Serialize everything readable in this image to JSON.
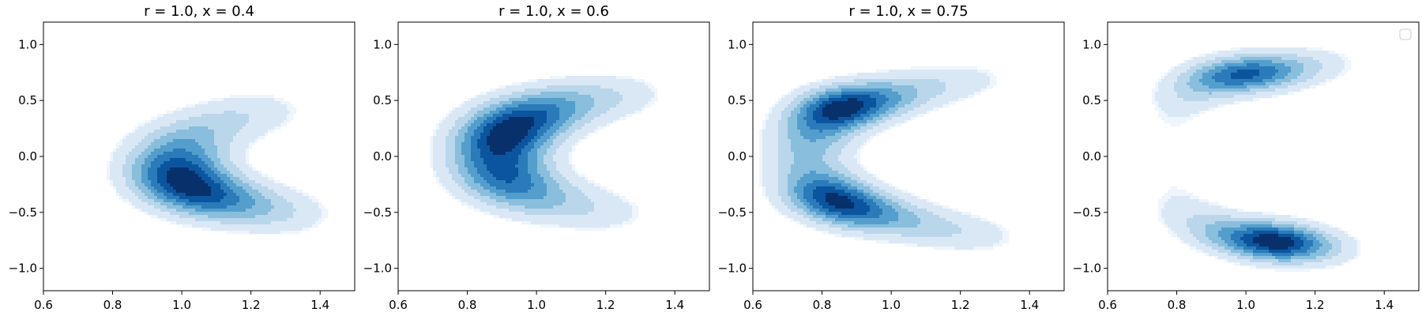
{
  "figure": {
    "background": "#ffffff"
  },
  "chart_data": [
    {
      "type": "contour",
      "title": "r = 1.0, x = 0.4",
      "xlim": [
        0.6,
        1.5
      ],
      "ylim": [
        -1.2,
        1.2
      ],
      "xticks": [
        0.6,
        0.8,
        1.0,
        1.2,
        1.4
      ],
      "xtick_labels": [
        "0.6",
        "0.8",
        "1.0",
        "1.2",
        "1.4"
      ],
      "yticks": [
        1.0,
        0.5,
        0.0,
        -0.5,
        -1.0
      ],
      "ytick_labels": [
        "1.0",
        "0.5",
        "0.0",
        "−0.5",
        "−1.0"
      ],
      "colormap": "Blues",
      "levels": 8,
      "grid": false,
      "density_path": [
        [
          1.3,
          0.45
        ],
        [
          1.15,
          0.35
        ],
        [
          1.0,
          0.15
        ],
        [
          0.97,
          -0.12
        ],
        [
          1.02,
          -0.3
        ],
        [
          1.12,
          -0.4
        ],
        [
          1.25,
          -0.48
        ],
        [
          1.37,
          -0.55
        ]
      ],
      "density_weight": [
        0.1,
        0.25,
        0.5,
        1.0,
        0.95,
        0.55,
        0.25,
        0.1
      ],
      "band_width": 0.08
    },
    {
      "type": "contour",
      "title": "r = 1.0, x = 0.6",
      "xlim": [
        0.6,
        1.5
      ],
      "ylim": [
        -1.2,
        1.2
      ],
      "xticks": [
        0.6,
        0.8,
        1.0,
        1.2,
        1.4
      ],
      "xtick_labels": [
        "0.6",
        "0.8",
        "1.0",
        "1.2",
        "1.4"
      ],
      "yticks": [
        1.0,
        0.5,
        0.0,
        -0.5,
        -1.0
      ],
      "ytick_labels": [
        "1.0",
        "0.5",
        "0.0",
        "−0.5",
        "−1.0"
      ],
      "colormap": "Blues",
      "levels": 8,
      "grid": false,
      "density_path": [
        [
          1.32,
          0.58
        ],
        [
          1.15,
          0.52
        ],
        [
          0.98,
          0.38
        ],
        [
          0.9,
          0.2
        ],
        [
          0.88,
          0.0
        ],
        [
          0.9,
          -0.2
        ],
        [
          0.98,
          -0.35
        ],
        [
          1.12,
          -0.45
        ],
        [
          1.27,
          -0.55
        ]
      ],
      "density_weight": [
        0.1,
        0.3,
        0.9,
        1.0,
        0.6,
        0.7,
        0.4,
        0.2,
        0.1
      ],
      "band_width": 0.08
    },
    {
      "type": "contour",
      "title": "r = 1.0, x = 0.75",
      "xlim": [
        0.6,
        1.5
      ],
      "ylim": [
        -1.2,
        1.2
      ],
      "xticks": [
        0.6,
        0.8,
        1.0,
        1.2,
        1.4
      ],
      "xtick_labels": [
        "0.6",
        "0.8",
        "1.0",
        "1.2",
        "1.4"
      ],
      "yticks": [
        1.0,
        0.5,
        0.0,
        -0.5,
        -1.0
      ],
      "ytick_labels": [
        "1.0",
        "0.5",
        "0.0",
        "−0.5",
        "−1.0"
      ],
      "colormap": "Blues",
      "levels": 8,
      "grid": false,
      "density_path": [
        [
          1.3,
          0.72
        ],
        [
          1.1,
          0.62
        ],
        [
          0.93,
          0.5
        ],
        [
          0.83,
          0.42
        ],
        [
          0.77,
          0.2
        ],
        [
          0.75,
          0.0
        ],
        [
          0.77,
          -0.22
        ],
        [
          0.83,
          -0.4
        ],
        [
          0.95,
          -0.52
        ],
        [
          1.15,
          -0.65
        ],
        [
          1.33,
          -0.75
        ]
      ],
      "density_weight": [
        0.1,
        0.25,
        0.65,
        1.0,
        0.35,
        0.25,
        0.35,
        1.0,
        0.6,
        0.25,
        0.1
      ],
      "band_width": 0.07
    },
    {
      "type": "contour",
      "title": "",
      "xlim": [
        0.6,
        1.5
      ],
      "ylim": [
        -1.2,
        1.2
      ],
      "xticks": [
        0.6,
        0.8,
        1.0,
        1.2,
        1.4
      ],
      "xtick_labels": [
        "0.6",
        "0.8",
        "1.0",
        "1.2",
        "1.4"
      ],
      "yticks": [
        1.0,
        0.5,
        0.0,
        -0.5,
        -1.0
      ],
      "ytick_labels": [
        "1.0",
        "0.5",
        "0.0",
        "−0.5",
        "−1.0"
      ],
      "colormap": "Blues",
      "levels": 8,
      "grid": false,
      "legend": {
        "placement": "top-right",
        "entries": []
      },
      "density_path": [
        [
          1.28,
          0.85
        ],
        [
          1.12,
          0.78
        ],
        [
          1.0,
          0.74
        ],
        [
          0.88,
          0.68
        ],
        [
          0.8,
          0.45
        ],
        [
          0.77,
          0.0
        ],
        [
          0.8,
          -0.45
        ],
        [
          0.92,
          -0.68
        ],
        [
          1.05,
          -0.75
        ],
        [
          1.12,
          -0.78
        ],
        [
          1.28,
          -0.85
        ]
      ],
      "density_weight": [
        0.1,
        0.4,
        1.0,
        0.45,
        0.15,
        0.12,
        0.15,
        0.45,
        0.85,
        1.0,
        0.1
      ],
      "band_width": 0.065
    }
  ]
}
